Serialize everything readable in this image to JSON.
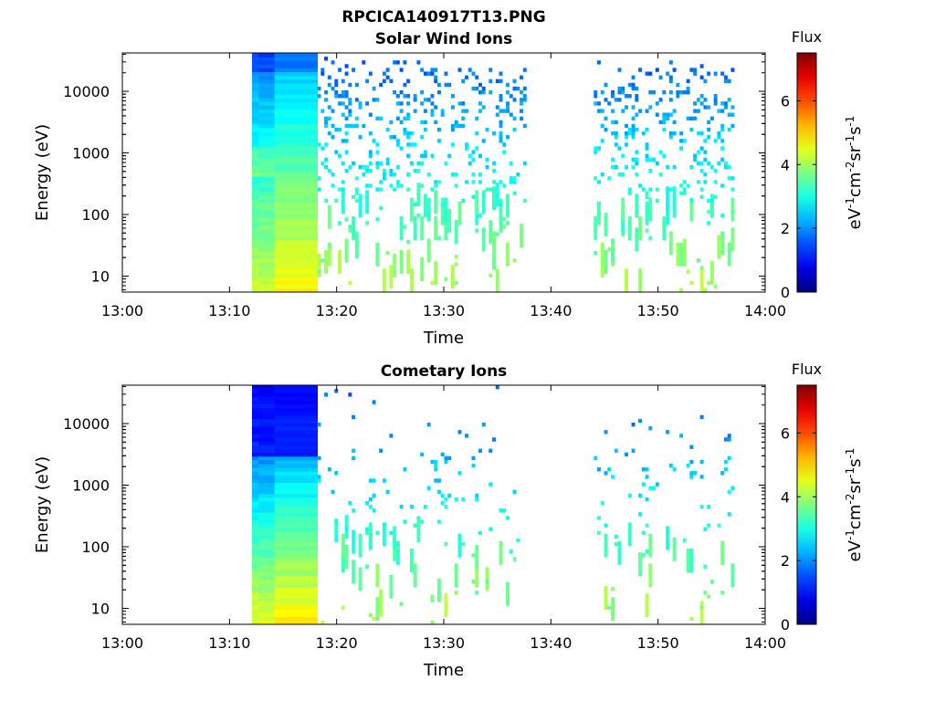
{
  "figure": {
    "filename_title": "RPCICA140917T13.PNG"
  },
  "chart_data": [
    {
      "type": "heatmap",
      "title": "Solar Wind Ions",
      "xlabel": "Time",
      "ylabel": "Energy (eV)",
      "x_ticks": [
        "13:00",
        "13:10",
        "13:20",
        "13:30",
        "13:40",
        "13:50",
        "14:00"
      ],
      "y_ticks": [
        "10",
        "100",
        "1000",
        "10000"
      ],
      "y_scale": "log",
      "colorbar": {
        "title": "Flux",
        "label_main": "eV",
        "label_parts": [
          "eV",
          "-1",
          "cm",
          "-2",
          "sr",
          "-1",
          "s",
          "-1"
        ],
        "ticks": [
          "0",
          "2",
          "4",
          "6"
        ],
        "range": [
          0,
          7.5
        ],
        "colormap": "jet"
      },
      "dense_block": {
        "t_start_min": 12.1,
        "t_split_min": 14.2,
        "t_end_min": 18.2
      },
      "gap": {
        "t_start_min": 37.5,
        "t_end_min": 44.0
      },
      "sparse_ranges": [
        [
          18.2,
          37.5
        ],
        [
          44.0,
          57.0
        ]
      ]
    },
    {
      "type": "heatmap",
      "title": "Cometary Ions",
      "xlabel": "Time",
      "ylabel": "Energy (eV)",
      "x_ticks": [
        "13:00",
        "13:10",
        "13:20",
        "13:30",
        "13:40",
        "13:50",
        "14:00"
      ],
      "y_ticks": [
        "10",
        "100",
        "1000",
        "10000"
      ],
      "y_scale": "log",
      "colorbar": {
        "title": "Flux",
        "label_parts": [
          "eV",
          "-1",
          "cm",
          "-2",
          "sr",
          "-1",
          "s",
          "-1"
        ],
        "ticks": [
          "0",
          "2",
          "4",
          "6"
        ],
        "range": [
          0,
          7.5
        ],
        "colormap": "jet"
      },
      "dense_block": {
        "t_start_min": 12.1,
        "t_split_min": 14.2,
        "t_end_min": 18.2
      },
      "gap": {
        "t_start_min": 38.0,
        "t_end_min": 44.0
      },
      "sparse_ranges": [
        [
          18.2,
          37.0
        ],
        [
          44.0,
          57.0
        ]
      ]
    }
  ]
}
